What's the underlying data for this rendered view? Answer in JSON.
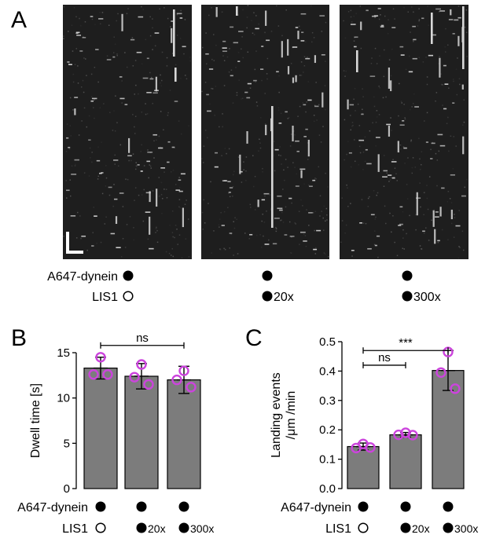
{
  "panel_a": {
    "letter": "A",
    "row_labels": {
      "dynein": "A647-dynein",
      "lis1": "LIS1"
    },
    "conditions": [
      {
        "dynein": "filled",
        "lis1": "open",
        "lis1_text": ""
      },
      {
        "dynein": "filled",
        "lis1": "filled",
        "lis1_text": "20x"
      },
      {
        "dynein": "filled",
        "lis1": "filled",
        "lis1_text": "300x"
      }
    ],
    "image_background": "#1e1e1e",
    "event_color": "#d8d8d8"
  },
  "chart_data": [
    {
      "panel": "B",
      "type": "bar",
      "categories": [
        "",
        "",
        ""
      ],
      "values": [
        13.3,
        12.4,
        12.0
      ],
      "errors": [
        1.2,
        1.4,
        1.5
      ],
      "points": [
        [
          14.5,
          12.6,
          12.6
        ],
        [
          13.7,
          12.3,
          11.5
        ],
        [
          13.0,
          12.0,
          11.2
        ]
      ],
      "ylabel": "Dwell time [s]",
      "ylim": [
        0,
        15
      ],
      "yticks": [
        0,
        5,
        10,
        15
      ],
      "significance": [
        {
          "from": 0,
          "to": 2,
          "label": "ns",
          "y": 15.8
        }
      ],
      "conditions": [
        {
          "dynein": "filled",
          "lis1": "open",
          "lis1_text": ""
        },
        {
          "dynein": "filled",
          "lis1": "filled",
          "lis1_text": "20x"
        },
        {
          "dynein": "filled",
          "lis1": "filled",
          "lis1_text": "300x"
        }
      ],
      "row_labels": {
        "dynein": "A647-dynein",
        "lis1": "LIS1"
      },
      "bar_color": "#7c7c7c",
      "point_color": "#cc44dd"
    },
    {
      "panel": "C",
      "type": "bar",
      "categories": [
        "",
        "",
        ""
      ],
      "values": [
        0.143,
        0.183,
        0.402
      ],
      "errors": [
        0.012,
        0.008,
        0.068
      ],
      "points": [
        [
          0.152,
          0.138,
          0.14
        ],
        [
          0.19,
          0.183,
          0.182
        ],
        [
          0.465,
          0.395,
          0.34
        ]
      ],
      "ylabel_lines": [
        "Landing events",
        "/μm /min"
      ],
      "ylim": [
        0,
        0.5
      ],
      "yticks": [
        0.0,
        0.1,
        0.2,
        0.3,
        0.4,
        0.5
      ],
      "significance": [
        {
          "from": 0,
          "to": 1,
          "label": "ns",
          "y": 0.42
        },
        {
          "from": 0,
          "to": 2,
          "label": "***",
          "y": 0.47
        }
      ],
      "conditions": [
        {
          "dynein": "filled",
          "lis1": "open",
          "lis1_text": ""
        },
        {
          "dynein": "filled",
          "lis1": "filled",
          "lis1_text": "20x"
        },
        {
          "dynein": "filled",
          "lis1": "filled",
          "lis1_text": "300x"
        }
      ],
      "row_labels": {
        "dynein": "A647-dynein",
        "lis1": "LIS1"
      },
      "bar_color": "#7c7c7c",
      "point_color": "#cc44dd"
    }
  ],
  "panel_letters": {
    "b": "B",
    "c": "C"
  }
}
